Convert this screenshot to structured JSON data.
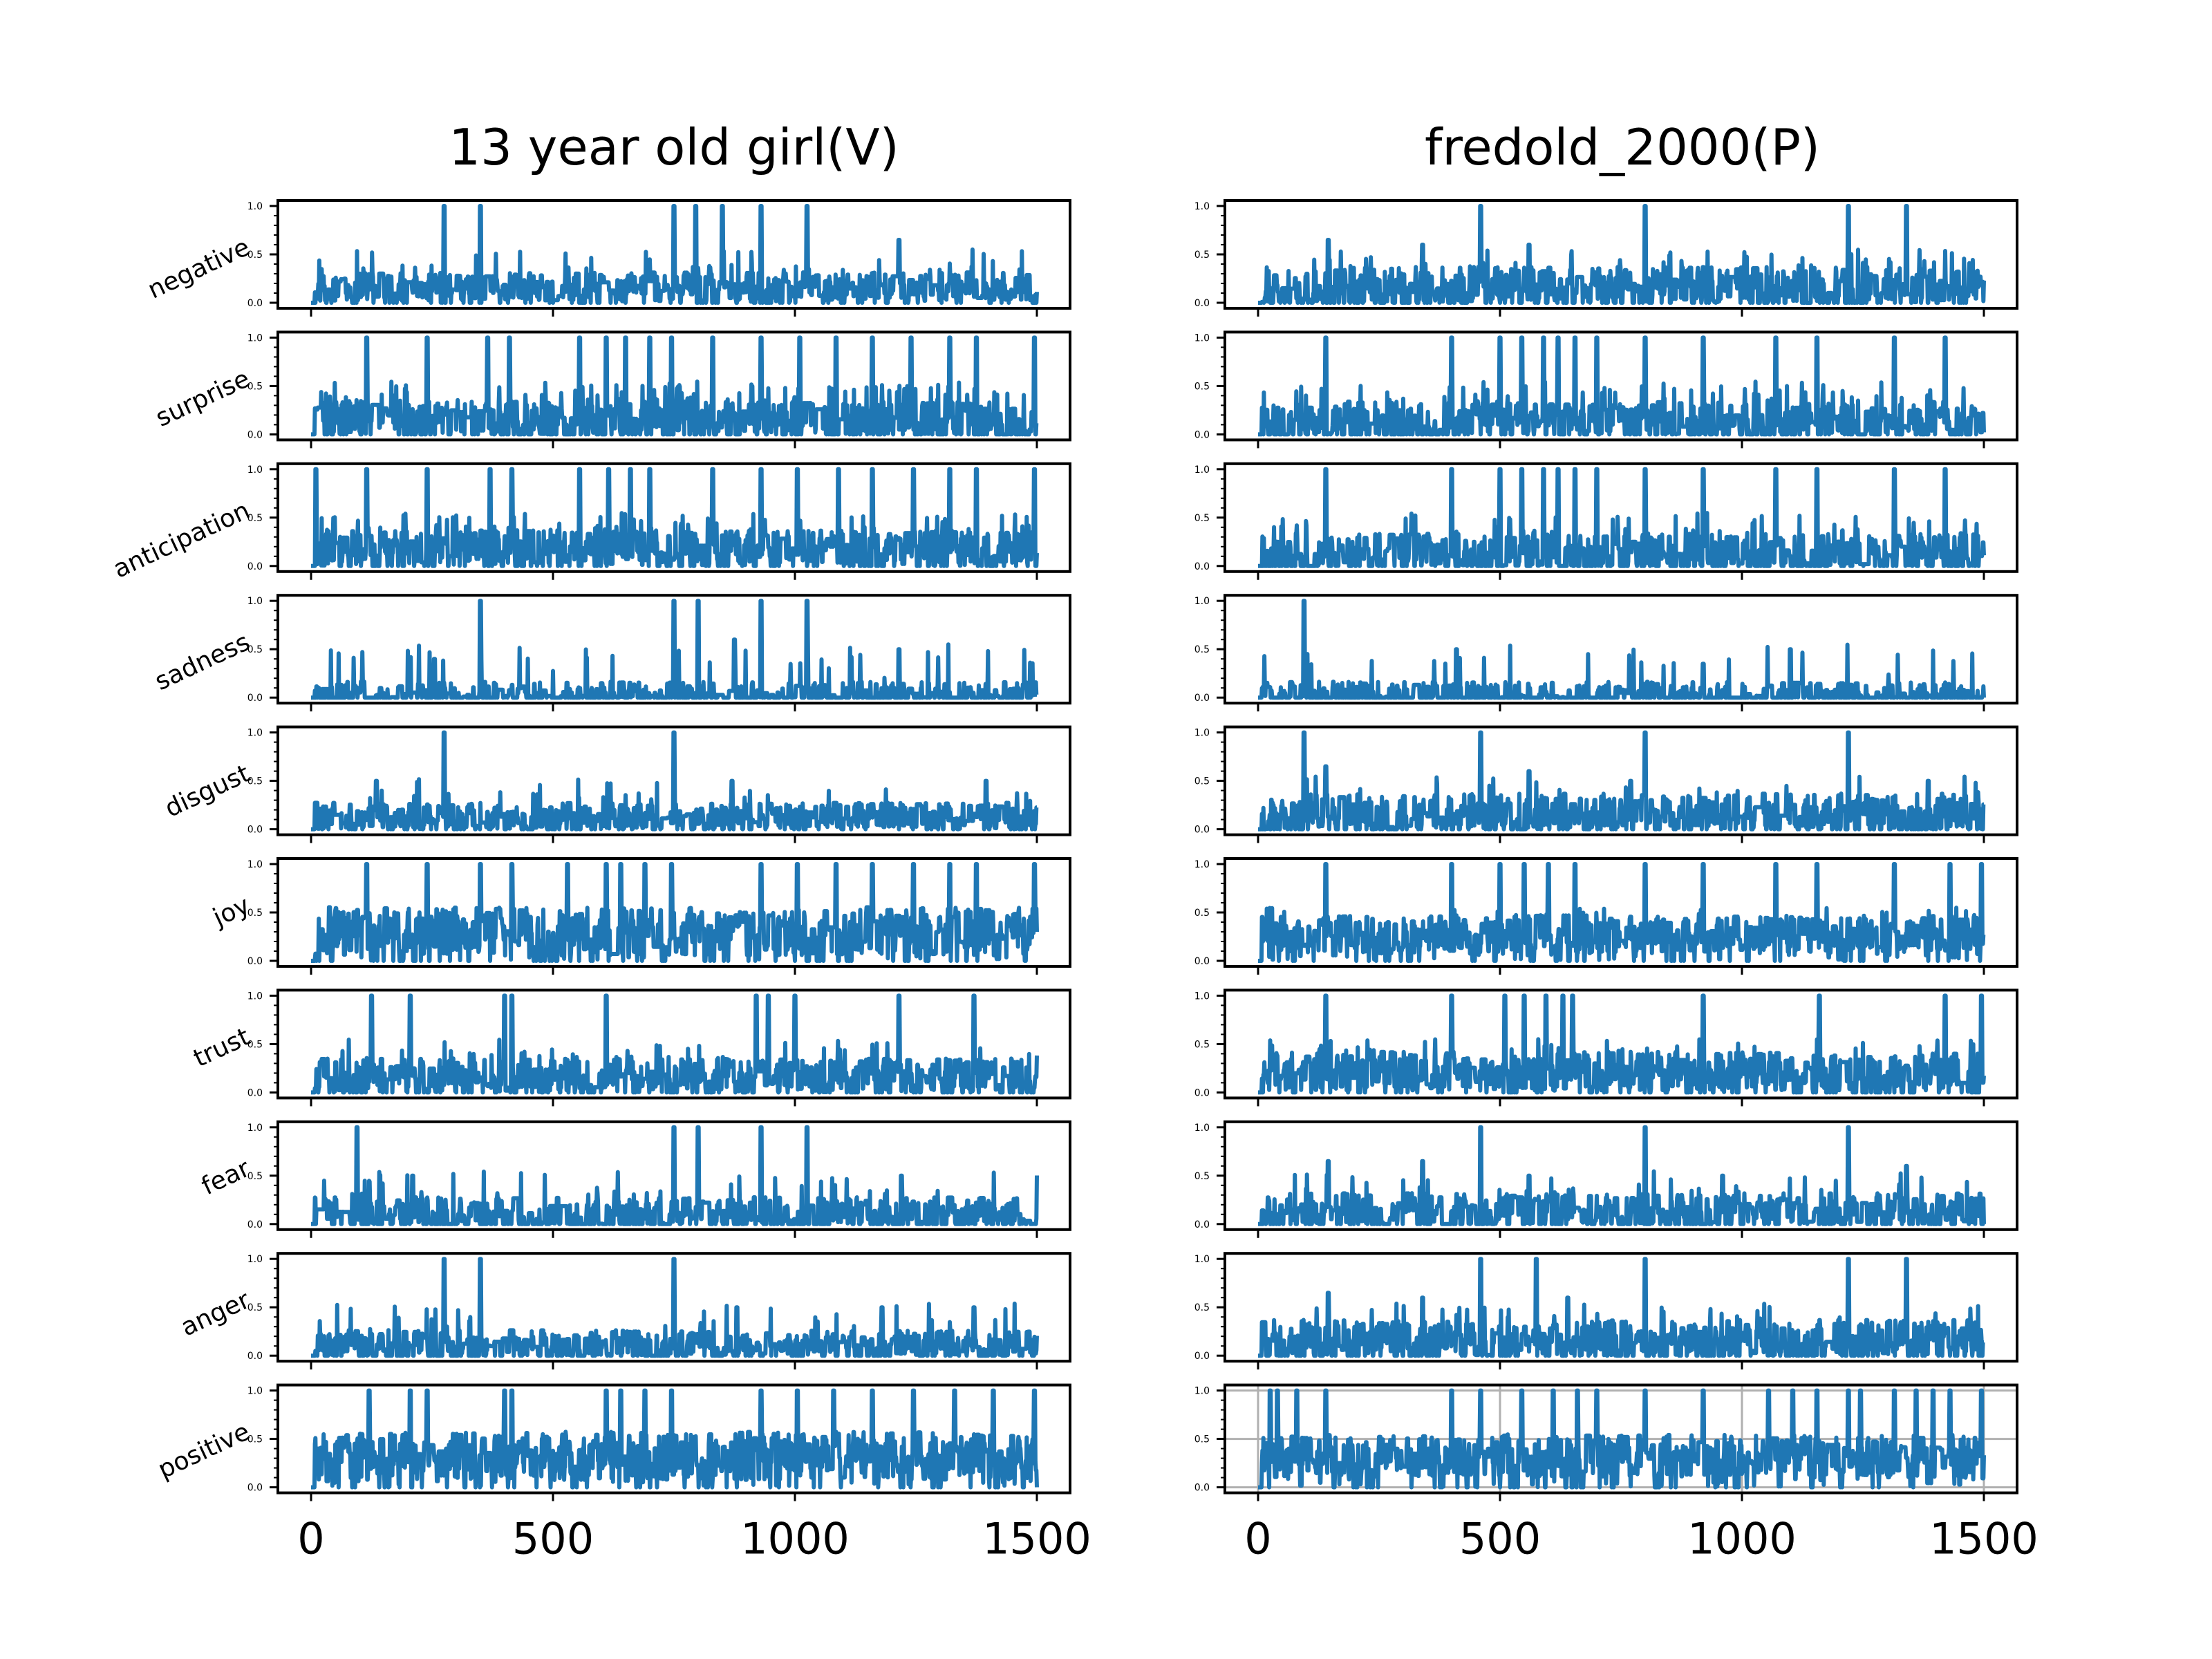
{
  "chart_data": {
    "type": "line",
    "layout": "10 rows x 2 columns of small-multiple panels",
    "line_color": "#1f77b4",
    "x_range": [
      0,
      1500
    ],
    "y_range": [
      0.0,
      1.0
    ],
    "x_ticks": [
      0,
      500,
      1000,
      1500
    ],
    "x_tick_labels": [
      "0",
      "500",
      "1000",
      "1500"
    ],
    "y_ticks": [
      0.0,
      0.5,
      1.0
    ],
    "y_tick_labels": [
      "0.0",
      "0.5",
      "1.0"
    ],
    "emotions": [
      "negative",
      "surprise",
      "anticipation",
      "sadness",
      "disgust",
      "joy",
      "trust",
      "fear",
      "anger",
      "positive"
    ],
    "columns": [
      {
        "title": "13 year old girl(V)",
        "x_start": 0,
        "x_end": 1500
      },
      {
        "title": "fredold_2000(P)",
        "x_start": 0,
        "x_end": 1500
      }
    ],
    "series": [
      {
        "column": 0,
        "emotion": "negative",
        "baseline": 0.15,
        "noise": 0.15,
        "peak_prob": 0.03,
        "start_offset": 0,
        "spikes": [
          [
            275,
            1.0
          ],
          [
            350,
            1.0
          ],
          [
            750,
            1.0
          ],
          [
            795,
            1.0
          ],
          [
            850,
            1.0
          ],
          [
            930,
            1.0
          ],
          [
            1025,
            1.0
          ],
          [
            1215,
            0.65
          ]
        ]
      },
      {
        "column": 0,
        "emotion": "surprise",
        "baseline": 0.12,
        "noise": 0.2,
        "peak_prob": 0.08,
        "start_offset": 0,
        "spikes": [
          [
            115,
            1.0
          ],
          [
            240,
            1.0
          ],
          [
            365,
            1.0
          ],
          [
            410,
            1.0
          ],
          [
            555,
            1.0
          ],
          [
            610,
            1.0
          ],
          [
            650,
            1.0
          ],
          [
            700,
            1.0
          ],
          [
            745,
            1.0
          ],
          [
            830,
            1.0
          ],
          [
            930,
            1.0
          ],
          [
            1010,
            1.0
          ],
          [
            1085,
            1.0
          ],
          [
            1160,
            1.0
          ],
          [
            1240,
            1.0
          ],
          [
            1320,
            1.0
          ],
          [
            1375,
            1.0
          ],
          [
            1495,
            1.0
          ]
        ]
      },
      {
        "column": 0,
        "emotion": "anticipation",
        "baseline": 0.15,
        "noise": 0.2,
        "peak_prob": 0.08,
        "start_offset": 0,
        "spikes": [
          [
            10,
            1.0
          ],
          [
            115,
            1.0
          ],
          [
            240,
            1.0
          ],
          [
            370,
            1.0
          ],
          [
            415,
            1.0
          ],
          [
            555,
            1.0
          ],
          [
            615,
            1.0
          ],
          [
            660,
            1.0
          ],
          [
            700,
            1.0
          ],
          [
            830,
            1.0
          ],
          [
            930,
            1.0
          ],
          [
            1005,
            1.0
          ],
          [
            1090,
            1.0
          ],
          [
            1160,
            1.0
          ],
          [
            1245,
            1.0
          ],
          [
            1320,
            1.0
          ],
          [
            1375,
            1.0
          ],
          [
            1495,
            1.0
          ]
        ]
      },
      {
        "column": 0,
        "emotion": "sadness",
        "baseline": 0.0,
        "noise": 0.15,
        "peak_prob": 0.025,
        "start_offset": 0,
        "spikes": [
          [
            350,
            1.0
          ],
          [
            750,
            1.0
          ],
          [
            800,
            1.0
          ],
          [
            930,
            1.0
          ],
          [
            1025,
            1.0
          ],
          [
            875,
            0.6
          ],
          [
            1215,
            0.5
          ],
          [
            255,
            0.4
          ]
        ]
      },
      {
        "column": 0,
        "emotion": "disgust",
        "baseline": 0.12,
        "noise": 0.14,
        "peak_prob": 0.02,
        "start_offset": 0,
        "spikes": [
          [
            275,
            1.0
          ],
          [
            750,
            1.0
          ],
          [
            870,
            0.5
          ],
          [
            1395,
            0.5
          ],
          [
            135,
            0.5
          ]
        ]
      },
      {
        "column": 0,
        "emotion": "joy",
        "baseline": 0.28,
        "noise": 0.25,
        "peak_prob": 0.09,
        "start_offset": 0,
        "spikes": [
          [
            115,
            1.0
          ],
          [
            240,
            1.0
          ],
          [
            350,
            1.0
          ],
          [
            415,
            1.0
          ],
          [
            530,
            1.0
          ],
          [
            610,
            1.0
          ],
          [
            640,
            1.0
          ],
          [
            690,
            1.0
          ],
          [
            745,
            1.0
          ],
          [
            930,
            1.0
          ],
          [
            1005,
            1.0
          ],
          [
            1085,
            1.0
          ],
          [
            1160,
            1.0
          ],
          [
            1245,
            1.0
          ],
          [
            1320,
            1.0
          ],
          [
            1375,
            1.0
          ],
          [
            1495,
            1.0
          ]
        ]
      },
      {
        "column": 0,
        "emotion": "trust",
        "baseline": 0.15,
        "noise": 0.18,
        "peak_prob": 0.04,
        "start_offset": 0,
        "spikes": [
          [
            125,
            1.0
          ],
          [
            205,
            1.0
          ],
          [
            400,
            1.0
          ],
          [
            415,
            1.0
          ],
          [
            610,
            1.0
          ],
          [
            920,
            1.0
          ],
          [
            945,
            1.0
          ],
          [
            1000,
            1.0
          ],
          [
            1215,
            1.0
          ],
          [
            1370,
            1.0
          ]
        ]
      },
      {
        "column": 0,
        "emotion": "fear",
        "baseline": 0.08,
        "noise": 0.18,
        "peak_prob": 0.025,
        "start_offset": 0,
        "spikes": [
          [
            95,
            1.0
          ],
          [
            750,
            1.0
          ],
          [
            800,
            1.0
          ],
          [
            930,
            1.0
          ],
          [
            1025,
            1.0
          ],
          [
            210,
            0.5
          ],
          [
            1220,
            0.5
          ]
        ]
      },
      {
        "column": 0,
        "emotion": "anger",
        "baseline": 0.1,
        "noise": 0.15,
        "peak_prob": 0.02,
        "start_offset": 0,
        "spikes": [
          [
            275,
            1.0
          ],
          [
            350,
            1.0
          ],
          [
            750,
            1.0
          ],
          [
            880,
            0.5
          ],
          [
            1370,
            0.5
          ],
          [
            1180,
            0.5
          ]
        ]
      },
      {
        "column": 0,
        "emotion": "positive",
        "baseline": 0.3,
        "noise": 0.25,
        "peak_prob": 0.09,
        "start_offset": 0,
        "spikes": [
          [
            120,
            1.0
          ],
          [
            205,
            1.0
          ],
          [
            240,
            1.0
          ],
          [
            400,
            1.0
          ],
          [
            415,
            1.0
          ],
          [
            610,
            1.0
          ],
          [
            640,
            1.0
          ],
          [
            690,
            1.0
          ],
          [
            745,
            1.0
          ],
          [
            930,
            1.0
          ],
          [
            1005,
            1.0
          ],
          [
            1080,
            1.0
          ],
          [
            1160,
            1.0
          ],
          [
            1245,
            1.0
          ],
          [
            1330,
            1.0
          ],
          [
            1410,
            1.0
          ],
          [
            1495,
            1.0
          ]
        ]
      },
      {
        "column": 1,
        "emotion": "negative",
        "baseline": 0.15,
        "noise": 0.2,
        "peak_prob": 0.035,
        "start_offset": 0,
        "spikes": [
          [
            460,
            1.0
          ],
          [
            800,
            1.0
          ],
          [
            1220,
            1.0
          ],
          [
            1340,
            1.0
          ],
          [
            145,
            0.65
          ],
          [
            340,
            0.6
          ],
          [
            560,
            0.6
          ]
        ]
      },
      {
        "column": 1,
        "emotion": "surprise",
        "baseline": 0.12,
        "noise": 0.2,
        "peak_prob": 0.05,
        "start_offset": 0,
        "spikes": [
          [
            140,
            1.0
          ],
          [
            400,
            1.0
          ],
          [
            500,
            1.0
          ],
          [
            545,
            1.0
          ],
          [
            590,
            1.0
          ],
          [
            620,
            1.0
          ],
          [
            655,
            1.0
          ],
          [
            700,
            1.0
          ],
          [
            800,
            1.0
          ],
          [
            920,
            1.0
          ],
          [
            1070,
            1.0
          ],
          [
            1155,
            1.0
          ],
          [
            1315,
            1.0
          ],
          [
            1420,
            1.0
          ]
        ]
      },
      {
        "column": 1,
        "emotion": "anticipation",
        "baseline": 0.12,
        "noise": 0.2,
        "peak_prob": 0.05,
        "start_offset": 0,
        "spikes": [
          [
            140,
            1.0
          ],
          [
            400,
            1.0
          ],
          [
            500,
            1.0
          ],
          [
            545,
            1.0
          ],
          [
            590,
            1.0
          ],
          [
            620,
            1.0
          ],
          [
            655,
            1.0
          ],
          [
            700,
            1.0
          ],
          [
            800,
            1.0
          ],
          [
            920,
            1.0
          ],
          [
            1070,
            1.0
          ],
          [
            1155,
            1.0
          ],
          [
            1315,
            1.0
          ],
          [
            1420,
            1.0
          ]
        ]
      },
      {
        "column": 1,
        "emotion": "sadness",
        "baseline": 0.0,
        "noise": 0.15,
        "peak_prob": 0.02,
        "start_offset": 0,
        "spikes": [
          [
            95,
            1.0
          ],
          [
            410,
            0.5
          ],
          [
            1100,
            0.5
          ],
          [
            920,
            0.35
          ]
        ]
      },
      {
        "column": 1,
        "emotion": "disgust",
        "baseline": 0.15,
        "noise": 0.2,
        "peak_prob": 0.03,
        "start_offset": 0,
        "spikes": [
          [
            95,
            1.0
          ],
          [
            460,
            1.0
          ],
          [
            800,
            1.0
          ],
          [
            1220,
            1.0
          ],
          [
            140,
            0.65
          ],
          [
            560,
            0.6
          ],
          [
            770,
            0.5
          ],
          [
            1385,
            0.5
          ]
        ]
      },
      {
        "column": 1,
        "emotion": "joy",
        "baseline": 0.25,
        "noise": 0.2,
        "peak_prob": 0.06,
        "start_offset": 0,
        "spikes": [
          [
            140,
            1.0
          ],
          [
            400,
            1.0
          ],
          [
            500,
            1.0
          ],
          [
            550,
            1.0
          ],
          [
            600,
            1.0
          ],
          [
            655,
            1.0
          ],
          [
            800,
            1.0
          ],
          [
            920,
            1.0
          ],
          [
            1070,
            1.0
          ],
          [
            1155,
            1.0
          ],
          [
            1315,
            1.0
          ],
          [
            1430,
            1.0
          ],
          [
            1495,
            1.0
          ]
        ]
      },
      {
        "column": 1,
        "emotion": "trust",
        "baseline": 0.2,
        "noise": 0.2,
        "peak_prob": 0.05,
        "start_offset": 0,
        "spikes": [
          [
            140,
            1.0
          ],
          [
            400,
            1.0
          ],
          [
            510,
            1.0
          ],
          [
            550,
            1.0
          ],
          [
            595,
            1.0
          ],
          [
            630,
            1.0
          ],
          [
            650,
            1.0
          ],
          [
            920,
            1.0
          ],
          [
            1160,
            1.0
          ],
          [
            1420,
            1.0
          ],
          [
            1495,
            1.0
          ]
        ]
      },
      {
        "column": 1,
        "emotion": "fear",
        "baseline": 0.12,
        "noise": 0.18,
        "peak_prob": 0.03,
        "start_offset": 0,
        "spikes": [
          [
            460,
            1.0
          ],
          [
            800,
            1.0
          ],
          [
            1220,
            1.0
          ],
          [
            145,
            0.65
          ],
          [
            340,
            0.65
          ],
          [
            1340,
            0.6
          ],
          [
            560,
            0.5
          ],
          [
            960,
            0.5
          ]
        ]
      },
      {
        "column": 1,
        "emotion": "anger",
        "baseline": 0.15,
        "noise": 0.2,
        "peak_prob": 0.03,
        "start_offset": 0,
        "spikes": [
          [
            460,
            1.0
          ],
          [
            575,
            1.0
          ],
          [
            800,
            1.0
          ],
          [
            1220,
            1.0
          ],
          [
            1340,
            1.0
          ],
          [
            145,
            0.65
          ],
          [
            340,
            0.6
          ],
          [
            640,
            0.6
          ]
        ]
      },
      {
        "column": 1,
        "emotion": "positive",
        "baseline": 0.3,
        "noise": 0.22,
        "peak_prob": 0.08,
        "start_offset": 0,
        "spikes": [
          [
            25,
            1.0
          ],
          [
            40,
            1.0
          ],
          [
            80,
            1.0
          ],
          [
            140,
            1.0
          ],
          [
            400,
            1.0
          ],
          [
            460,
            1.0
          ],
          [
            545,
            1.0
          ],
          [
            610,
            1.0
          ],
          [
            660,
            1.0
          ],
          [
            700,
            1.0
          ],
          [
            800,
            1.0
          ],
          [
            920,
            1.0
          ],
          [
            1055,
            1.0
          ],
          [
            1105,
            1.0
          ],
          [
            1155,
            1.0
          ],
          [
            1220,
            1.0
          ],
          [
            1245,
            1.0
          ],
          [
            1315,
            1.0
          ],
          [
            1360,
            1.0
          ],
          [
            1395,
            1.0
          ],
          [
            1430,
            1.0
          ],
          [
            1495,
            1.0
          ]
        ]
      }
    ],
    "grid_on_panels": [
      {
        "column": 1,
        "emotion": "positive"
      }
    ]
  }
}
